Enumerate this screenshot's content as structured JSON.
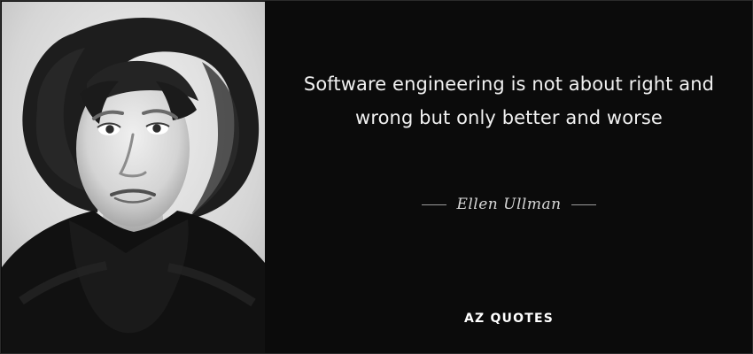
{
  "quote": {
    "text": "Software engineering is not about right and wrong but only better and worse",
    "author": "Ellen Ullman"
  },
  "brand": {
    "name": "AZ QUOTES"
  },
  "colors": {
    "panel_background": "#0b0b0b",
    "quote_text": "#f1f1f1",
    "author_text": "#d7d7d7",
    "brand_text": "#ffffff",
    "photo_background": "#d9d9d9"
  },
  "images": {
    "portrait": "black-and-white-portrait"
  }
}
